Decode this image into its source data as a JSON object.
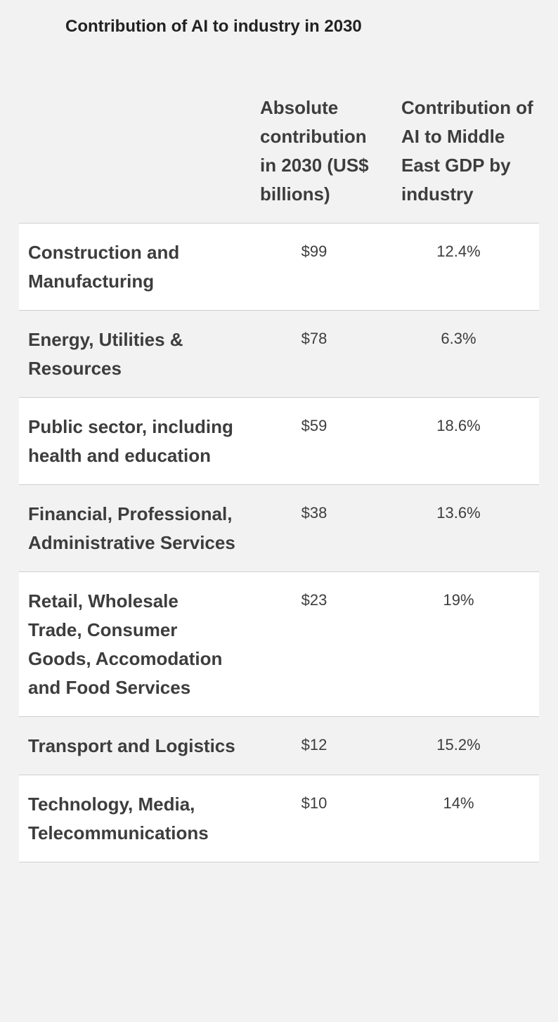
{
  "title": "Contribution of AI to industry in 2030",
  "table": {
    "headers": [
      "Absolute contribution in 2030 (US$ billions)",
      "Contribution of AI to Middle East GDP by industry"
    ],
    "rows": [
      [
        "Construction and Manufacturing",
        "$99",
        "12.4%"
      ],
      [
        "Energy, Utilities & Resources",
        "$78",
        "6.3%"
      ],
      [
        "Public sector, including health and education",
        "$59",
        "18.6%"
      ],
      [
        "Financial, Professional, Administrative Services",
        "$38",
        "13.6%"
      ],
      [
        "Retail, Wholesale Trade, Consumer Goods, Accomodation and Food Services",
        "$23",
        "19%"
      ],
      [
        "Transport and Logistics",
        "$12",
        "15.2%"
      ],
      [
        "Technology, Media, Telecommunications",
        "$10",
        "14%"
      ]
    ]
  }
}
